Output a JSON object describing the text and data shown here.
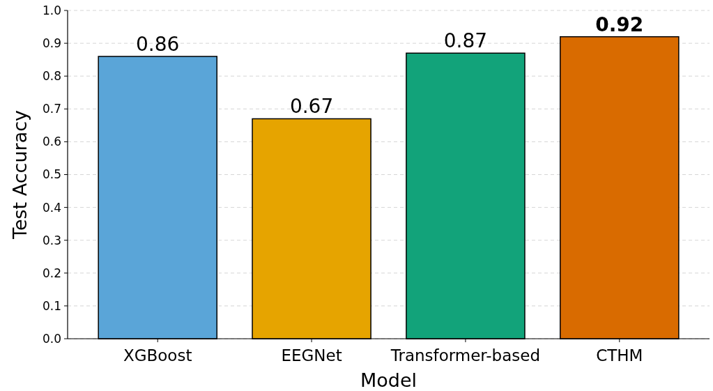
{
  "chart_data": {
    "type": "bar",
    "xlabel": "Model",
    "ylabel": "Test Accuracy",
    "categories": [
      "XGBoost",
      "EEGNet",
      "Transformer-based",
      "CTHM"
    ],
    "values": [
      0.86,
      0.67,
      0.87,
      0.92
    ],
    "colors": [
      "#5aa5d8",
      "#e6a400",
      "#12a37a",
      "#d96b00"
    ],
    "ylim": [
      0,
      1.0
    ],
    "yticks": [
      {
        "value": 0,
        "label": "0.0"
      },
      {
        "value": 0.1,
        "label": "0.1"
      },
      {
        "value": 0.2,
        "label": "0.2"
      },
      {
        "value": 0.3,
        "label": "0.3"
      },
      {
        "value": 0.4,
        "label": "0.4"
      },
      {
        "value": 0.5,
        "label": "0.5"
      },
      {
        "value": 0.6,
        "label": "0.6"
      },
      {
        "value": 0.7,
        "label": "0.7"
      },
      {
        "value": 0.8,
        "label": "0.8"
      },
      {
        "value": 0.9,
        "label": "0.9"
      },
      {
        "value": 1.0,
        "label": "1.0"
      }
    ],
    "grid": "y",
    "data_labels": true
  }
}
